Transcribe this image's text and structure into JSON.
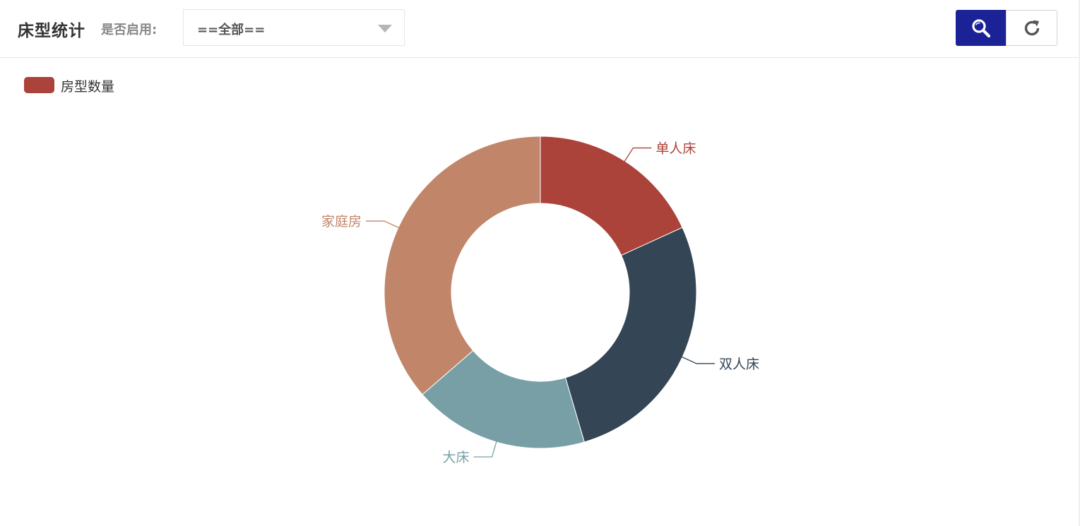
{
  "page": {
    "title": "床型统计"
  },
  "filter": {
    "label": "是否启用:",
    "value": "==全部=="
  },
  "toolbar": {
    "search_icon": "search-icon",
    "refresh_icon": "refresh-icon",
    "search_color": "#1a2295"
  },
  "chart_data": {
    "type": "pie",
    "style": "donut",
    "series_name": "房型数量",
    "legend": [
      "房型数量"
    ],
    "legend_position": "top-left",
    "start_angle_deg": 90,
    "clockwise": true,
    "slices": [
      {
        "label": "单人床",
        "value": 2,
        "color": "#ab433a"
      },
      {
        "label": "双人床",
        "value": 3,
        "color": "#344555"
      },
      {
        "label": "大床",
        "value": 2,
        "color": "#789fa6"
      },
      {
        "label": "家庭房",
        "value": 4,
        "color": "#c1856a"
      }
    ]
  }
}
